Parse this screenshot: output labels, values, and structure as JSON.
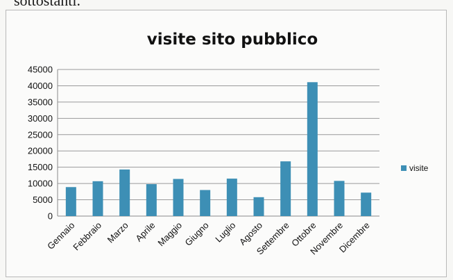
{
  "document": {
    "caption_text": "sottostanti."
  },
  "chart_data": {
    "type": "bar",
    "title": "visite sito pubblico",
    "xlabel": "",
    "ylabel": "",
    "categories": [
      "Gennaio",
      "Febbraio",
      "Marzo",
      "Aprile",
      "Maggio",
      "Giugno",
      "Luglio",
      "Agosto",
      "Settembre",
      "Ottobre",
      "Novembre",
      "Dicembre"
    ],
    "series": [
      {
        "name": "visite",
        "color": "#3d8fb5",
        "values": [
          8900,
          10700,
          14300,
          9800,
          11400,
          8000,
          11500,
          5800,
          16800,
          41100,
          10800,
          7200
        ]
      }
    ],
    "ylim": [
      0,
      45000
    ],
    "yticks": [
      "0",
      "5000",
      "10000",
      "15000",
      "20000",
      "25000",
      "30000",
      "35000",
      "40000",
      "45000"
    ],
    "grid": true,
    "legend": "right"
  }
}
